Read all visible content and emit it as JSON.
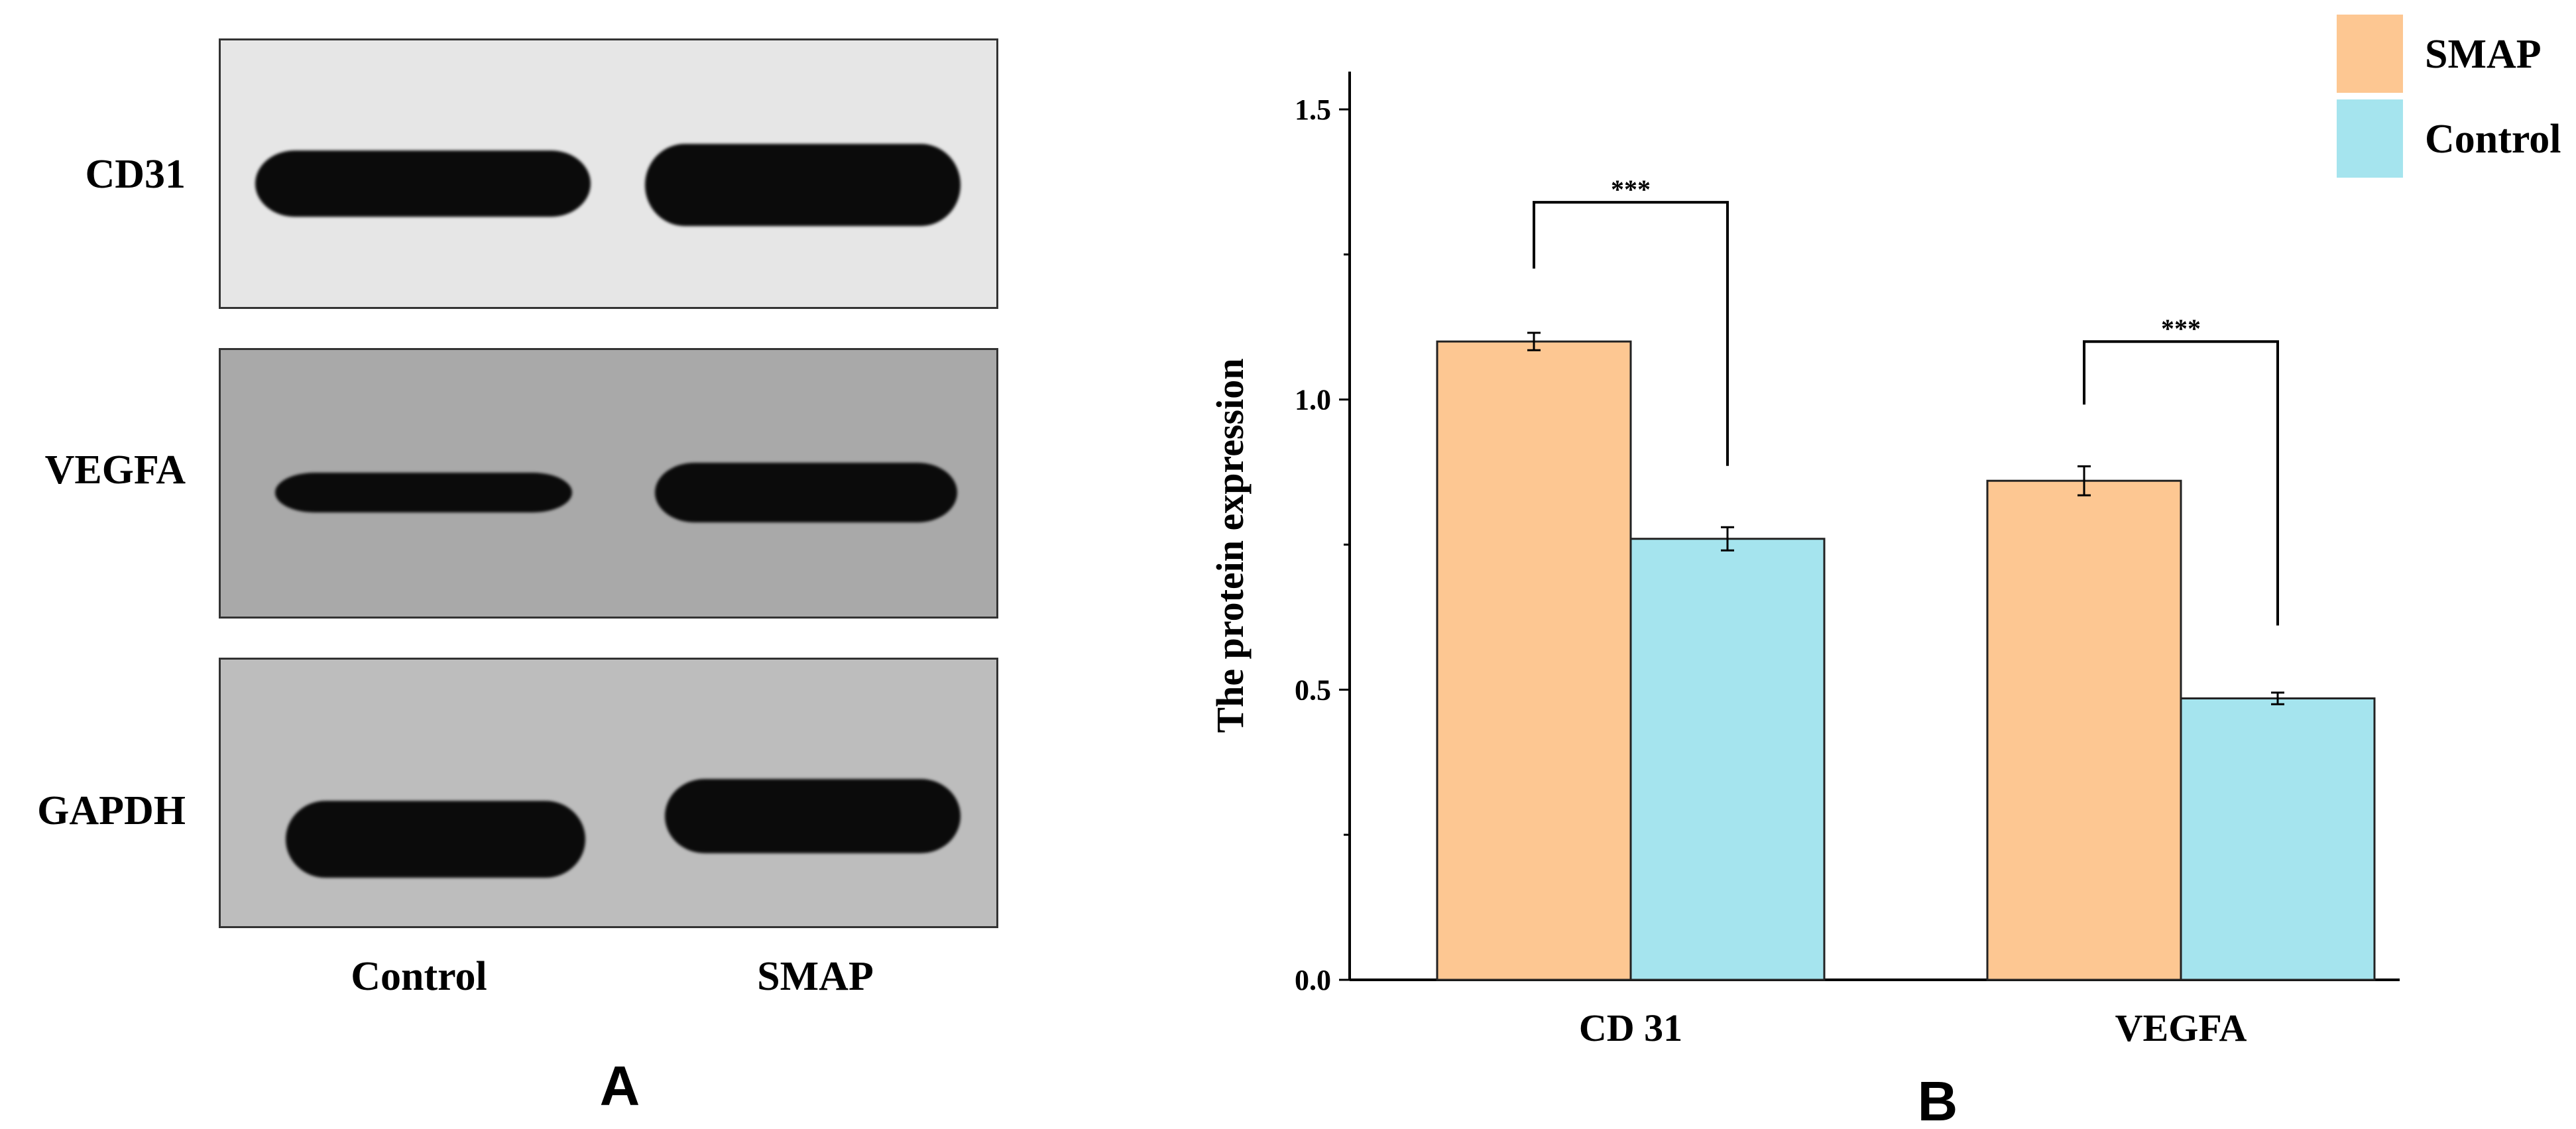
{
  "panel_a": {
    "letter": "A",
    "blots": [
      {
        "label": "CD31",
        "background": "#e6e6e6"
      },
      {
        "label": "VEGFA",
        "background": "#a9a9a9"
      },
      {
        "label": "GAPDH",
        "background": "#bdbdbd"
      }
    ],
    "lanes": [
      "Control",
      "SMAP"
    ]
  },
  "panel_b": {
    "letter": "B"
  },
  "chart_data": {
    "type": "bar",
    "categories": [
      "CD 31",
      "VEGFA"
    ],
    "series": [
      {
        "name": "SMAP",
        "values": [
          1.1,
          0.86
        ],
        "errors": [
          0.015,
          0.025
        ],
        "color": "#fdc792"
      },
      {
        "name": "Control",
        "values": [
          0.76,
          0.485
        ],
        "errors": [
          0.02,
          0.01
        ],
        "color": "#a5e4ee"
      }
    ],
    "title": "",
    "xlabel": "",
    "ylabel": "The protein expression",
    "ylim": [
      0,
      1.5
    ],
    "yticks": [
      0.0,
      0.5,
      1.0,
      1.5
    ],
    "yticklabels": [
      "0.0",
      "0.5",
      "1.0",
      "1.5"
    ],
    "significance": [
      "***",
      "***"
    ],
    "legend": [
      "SMAP",
      "Control"
    ],
    "legend_position": "top-right",
    "grid": false
  }
}
